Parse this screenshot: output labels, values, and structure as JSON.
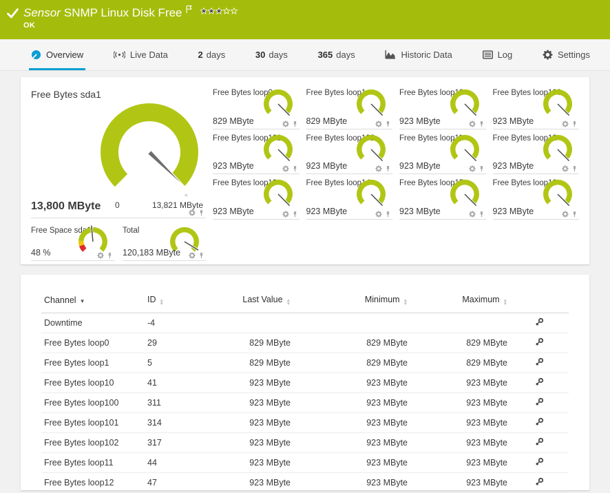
{
  "colors": {
    "brand_green": "#a4bd0c",
    "gauge_green": "#b1c614",
    "accent_blue": "#0b9dd3",
    "alert_red": "#dd2b2b",
    "warning_yellow": "#f2c40f",
    "needle_gray": "#6d6d6d"
  },
  "header": {
    "kind": "Sensor",
    "title": "SNMP Linux Disk Free",
    "status": "OK",
    "priority_stars": {
      "filled": 3,
      "total": 5
    }
  },
  "tabs": [
    {
      "label": "Overview",
      "icon": "gauge-icon",
      "active": true
    },
    {
      "label": "Live Data",
      "icon": "broadcast-icon",
      "active": false
    },
    {
      "prefix": "2",
      "label": "days",
      "active": false
    },
    {
      "prefix": "30",
      "label": "days",
      "active": false
    },
    {
      "prefix": "365",
      "label": "days",
      "active": false
    },
    {
      "label": "Historic Data",
      "icon": "chart-icon",
      "active": false
    },
    {
      "label": "Log",
      "icon": "log-icon",
      "active": false
    },
    {
      "label": "Settings",
      "icon": "gear-icon",
      "active": false
    }
  ],
  "gauges": {
    "primary": {
      "title": "Free Bytes sda1",
      "value": "13,800 MByte",
      "min_label": "0",
      "max_label": "13,821 MByte",
      "fraction": 0.998,
      "avg_marker": "x̄"
    },
    "small": [
      {
        "title": "Free Bytes loop0",
        "value": "829 MByte",
        "fraction": 1
      },
      {
        "title": "Free Bytes loop1",
        "value": "829 MByte",
        "fraction": 1
      },
      {
        "title": "Free Bytes loop10",
        "value": "923 MByte",
        "fraction": 1
      },
      {
        "title": "Free Bytes loop100",
        "value": "923 MByte",
        "fraction": 1
      },
      {
        "title": "Free Bytes loop101",
        "value": "923 MByte",
        "fraction": 1
      },
      {
        "title": "Free Bytes loop102",
        "value": "923 MByte",
        "fraction": 1
      },
      {
        "title": "Free Bytes loop11",
        "value": "923 MByte",
        "fraction": 1
      },
      {
        "title": "Free Bytes loop12",
        "value": "923 MByte",
        "fraction": 1
      },
      {
        "title": "Free Bytes loop13",
        "value": "923 MByte",
        "fraction": 1
      },
      {
        "title": "Free Bytes loop14",
        "value": "923 MByte",
        "fraction": 1
      },
      {
        "title": "Free Bytes loop15",
        "value": "923 MByte",
        "fraction": 1
      },
      {
        "title": "Free Bytes loop16",
        "value": "923 MByte",
        "fraction": 1
      }
    ],
    "footer": [
      {
        "title": "Free Space sda1",
        "value": "48 %",
        "fraction": 0.48,
        "segments": [
          {
            "from": 0,
            "to": 0.1,
            "color": "#dd2b2b"
          },
          {
            "from": 0.1,
            "to": 0.18,
            "color": "#f2c40f"
          },
          {
            "from": 0.18,
            "to": 1,
            "color": "#b1c614"
          }
        ]
      },
      {
        "title": "Total",
        "value": "120,183 MByte",
        "fraction": 0.95
      }
    ]
  },
  "table": {
    "columns": [
      {
        "label": "Channel",
        "align": "left",
        "sort": "desc"
      },
      {
        "label": "ID",
        "align": "left",
        "sort": "both"
      },
      {
        "label": "Last Value",
        "align": "right",
        "sort": "both"
      },
      {
        "label": "Minimum",
        "align": "right",
        "sort": "both"
      },
      {
        "label": "Maximum",
        "align": "right",
        "sort": "both"
      }
    ],
    "rows": [
      {
        "channel": "Downtime",
        "id": "-4",
        "last": "",
        "min": "",
        "max": ""
      },
      {
        "channel": "Free Bytes loop0",
        "id": "29",
        "last": "829 MByte",
        "min": "829 MByte",
        "max": "829 MByte"
      },
      {
        "channel": "Free Bytes loop1",
        "id": "5",
        "last": "829 MByte",
        "min": "829 MByte",
        "max": "829 MByte"
      },
      {
        "channel": "Free Bytes loop10",
        "id": "41",
        "last": "923 MByte",
        "min": "923 MByte",
        "max": "923 MByte"
      },
      {
        "channel": "Free Bytes loop100",
        "id": "311",
        "last": "923 MByte",
        "min": "923 MByte",
        "max": "923 MByte"
      },
      {
        "channel": "Free Bytes loop101",
        "id": "314",
        "last": "923 MByte",
        "min": "923 MByte",
        "max": "923 MByte"
      },
      {
        "channel": "Free Bytes loop102",
        "id": "317",
        "last": "923 MByte",
        "min": "923 MByte",
        "max": "923 MByte"
      },
      {
        "channel": "Free Bytes loop11",
        "id": "44",
        "last": "923 MByte",
        "min": "923 MByte",
        "max": "923 MByte"
      },
      {
        "channel": "Free Bytes loop12",
        "id": "47",
        "last": "923 MByte",
        "min": "923 MByte",
        "max": "923 MByte"
      }
    ]
  }
}
